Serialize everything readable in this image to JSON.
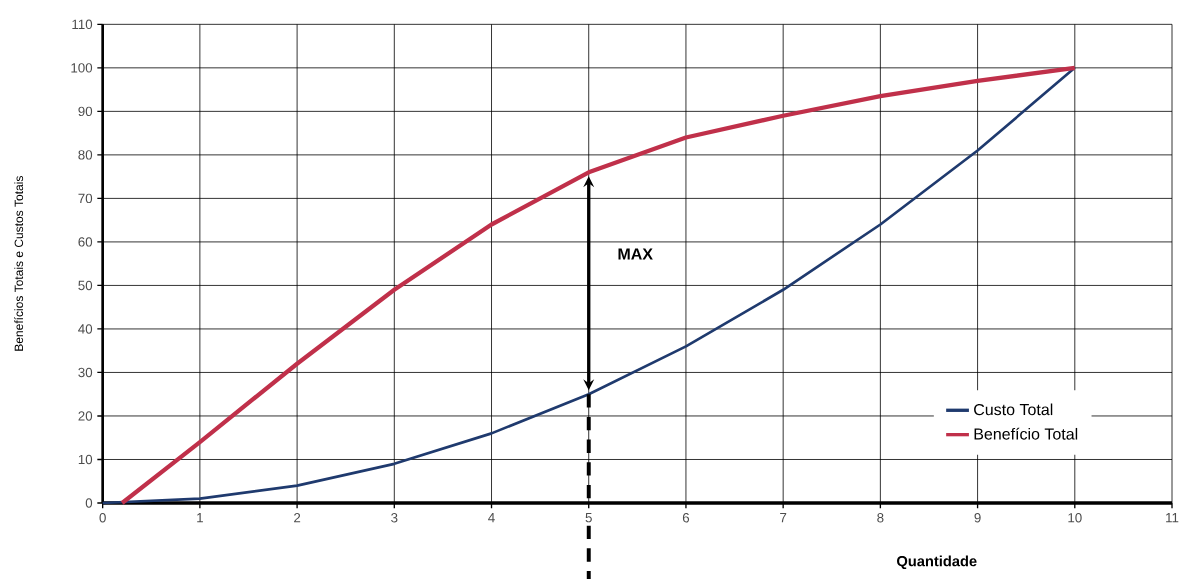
{
  "chart_data": {
    "type": "line",
    "xlabel": "Quantidade",
    "ylabel": "Benefícios Totais e Custos Totais",
    "series": [
      {
        "name": "Custo Total",
        "color": "#1f3a6e",
        "x": [
          0,
          1,
          2,
          3,
          4,
          5,
          6,
          7,
          8,
          9,
          10
        ],
        "values": [
          0,
          1,
          4,
          9,
          16,
          25,
          36,
          49,
          64,
          81,
          100
        ]
      },
      {
        "name": "Benefício Total",
        "color": "#c0304a",
        "x": [
          0.2,
          1,
          2,
          3,
          4,
          5,
          6,
          7,
          8,
          9,
          10
        ],
        "values": [
          0,
          14,
          32,
          49,
          64,
          76,
          84,
          89,
          93.5,
          97,
          100
        ]
      }
    ],
    "annotations": [
      "MAX"
    ],
    "ref_lines": [
      {
        "axis": "x",
        "value": 5,
        "line_style": "dashed",
        "color": "#000000"
      }
    ],
    "xlim": [
      0,
      11
    ],
    "xticks": [
      0,
      1,
      2,
      3,
      4,
      5,
      6,
      7,
      8,
      9,
      10,
      11
    ],
    "ylim": [
      0,
      110
    ],
    "yticks": [
      0,
      10,
      20,
      30,
      40,
      50,
      60,
      70,
      80,
      90,
      100,
      110
    ],
    "grid": true,
    "legend": "bottom right",
    "marker": "none",
    "line_style": "solid"
  }
}
